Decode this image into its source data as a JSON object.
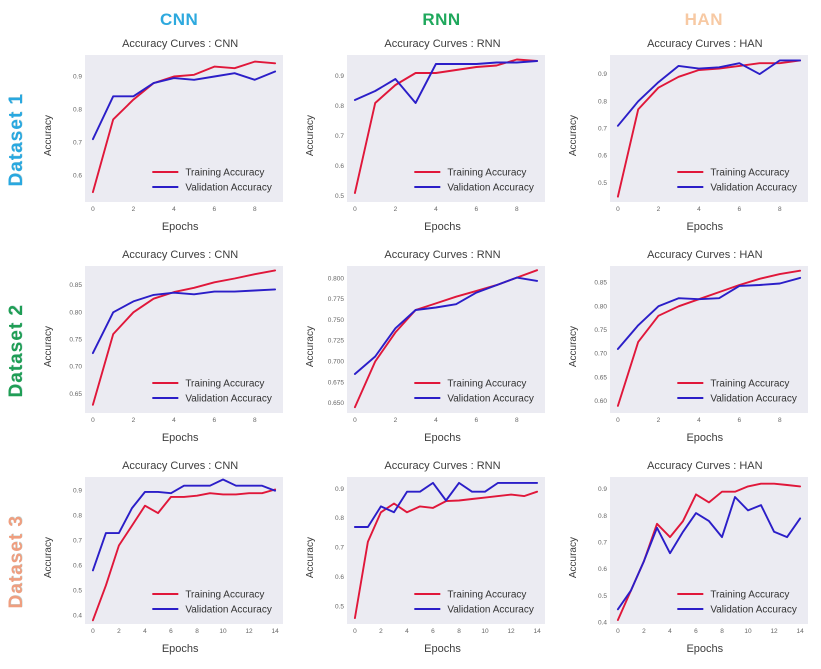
{
  "colors": {
    "train": "#e0173a",
    "val": "#2b1ec8",
    "plot_bg": "#ebebf2",
    "tick": "#666666",
    "legend_text": "#333333"
  },
  "columns": [
    {
      "label": "CNN",
      "color": "#2ea9de"
    },
    {
      "label": "RNN",
      "color": "#1fa85c"
    },
    {
      "label": "HAN",
      "color": "#f7c9a3"
    }
  ],
  "rows": [
    {
      "label": "Dataset 1",
      "color": "#29a8e0"
    },
    {
      "label": "Dataset 2",
      "color": "#1f9e55"
    },
    {
      "label": "Dataset 3",
      "color": "#ef9e7f"
    }
  ],
  "chart_data": [
    {
      "type": "line",
      "title": "Accuracy Curves : CNN",
      "xlabel": "Epochs",
      "ylabel": "Accuracy",
      "x": [
        0,
        1,
        2,
        3,
        4,
        5,
        6,
        7,
        8,
        9
      ],
      "xticks": [
        0,
        2,
        4,
        6,
        8
      ],
      "yticks": [
        0.6,
        0.7,
        0.8,
        0.9
      ],
      "ytick_labels": [
        "0.6",
        "0.7",
        "0.8",
        "0.9"
      ],
      "ylim": [
        0.52,
        0.965
      ],
      "legend_position": "lower right",
      "series": [
        {
          "name": "Training Accuracy",
          "color_key": "train",
          "values": [
            0.55,
            0.77,
            0.83,
            0.88,
            0.9,
            0.905,
            0.93,
            0.925,
            0.945,
            0.94
          ]
        },
        {
          "name": "Validation Accuracy",
          "color_key": "val",
          "values": [
            0.71,
            0.84,
            0.84,
            0.88,
            0.895,
            0.89,
            0.9,
            0.91,
            0.89,
            0.915
          ]
        }
      ]
    },
    {
      "type": "line",
      "title": "Accuracy Curves : RNN",
      "xlabel": "Epochs",
      "ylabel": "Accuracy",
      "x": [
        0,
        1,
        2,
        3,
        4,
        5,
        6,
        7,
        8,
        9
      ],
      "xticks": [
        0,
        2,
        4,
        6,
        8
      ],
      "yticks": [
        0.5,
        0.6,
        0.7,
        0.8,
        0.9
      ],
      "ytick_labels": [
        "0.5",
        "0.6",
        "0.7",
        "0.8",
        "0.9"
      ],
      "ylim": [
        0.48,
        0.97
      ],
      "legend_position": "lower right",
      "series": [
        {
          "name": "Training Accuracy",
          "color_key": "train",
          "values": [
            0.51,
            0.81,
            0.87,
            0.91,
            0.91,
            0.92,
            0.93,
            0.935,
            0.955,
            0.95
          ]
        },
        {
          "name": "Validation Accuracy",
          "color_key": "val",
          "values": [
            0.82,
            0.85,
            0.89,
            0.81,
            0.94,
            0.94,
            0.94,
            0.945,
            0.945,
            0.95
          ]
        }
      ]
    },
    {
      "type": "line",
      "title": "Accuracy Curves : HAN",
      "xlabel": "Epochs",
      "ylabel": "Accuracy",
      "x": [
        0,
        1,
        2,
        3,
        4,
        5,
        6,
        7,
        8,
        9
      ],
      "xticks": [
        0,
        2,
        4,
        6,
        8
      ],
      "yticks": [
        0.5,
        0.6,
        0.7,
        0.8,
        0.9
      ],
      "ytick_labels": [
        "0.5",
        "0.6",
        "0.7",
        "0.8",
        "0.9"
      ],
      "ylim": [
        0.43,
        0.97
      ],
      "legend_position": "lower right",
      "series": [
        {
          "name": "Training Accuracy",
          "color_key": "train",
          "values": [
            0.45,
            0.77,
            0.85,
            0.89,
            0.915,
            0.92,
            0.93,
            0.94,
            0.94,
            0.95
          ]
        },
        {
          "name": "Validation Accuracy",
          "color_key": "val",
          "values": [
            0.71,
            0.8,
            0.87,
            0.93,
            0.92,
            0.925,
            0.94,
            0.9,
            0.95,
            0.95
          ]
        }
      ]
    },
    {
      "type": "line",
      "title": "Accuracy Curves : CNN",
      "xlabel": "Epochs",
      "ylabel": "Accuracy",
      "x": [
        0,
        1,
        2,
        3,
        4,
        5,
        6,
        7,
        8,
        9
      ],
      "xticks": [
        0,
        2,
        4,
        6,
        8
      ],
      "yticks": [
        0.65,
        0.7,
        0.75,
        0.8,
        0.85
      ],
      "ytick_labels": [
        "0.65",
        "0.70",
        "0.75",
        "0.80",
        "0.85"
      ],
      "ylim": [
        0.615,
        0.885
      ],
      "legend_position": "lower right",
      "series": [
        {
          "name": "Training Accuracy",
          "color_key": "train",
          "values": [
            0.63,
            0.76,
            0.8,
            0.825,
            0.837,
            0.845,
            0.855,
            0.862,
            0.87,
            0.877
          ]
        },
        {
          "name": "Validation Accuracy",
          "color_key": "val",
          "values": [
            0.725,
            0.8,
            0.82,
            0.832,
            0.836,
            0.833,
            0.838,
            0.838,
            0.84,
            0.842
          ]
        }
      ]
    },
    {
      "type": "line",
      "title": "Accuracy Curves : RNN",
      "xlabel": "Epochs",
      "ylabel": "Accuracy",
      "x": [
        0,
        1,
        2,
        3,
        4,
        5,
        6,
        7,
        8,
        9
      ],
      "xticks": [
        0,
        2,
        4,
        6,
        8
      ],
      "yticks": [
        0.65,
        0.675,
        0.7,
        0.725,
        0.75,
        0.775,
        0.8
      ],
      "ytick_labels": [
        "0.650",
        "0.675",
        "0.700",
        "0.725",
        "0.750",
        "0.775",
        "0.800"
      ],
      "ylim": [
        0.638,
        0.815
      ],
      "legend_position": "lower right",
      "series": [
        {
          "name": "Training Accuracy",
          "color_key": "train",
          "values": [
            0.645,
            0.7,
            0.735,
            0.762,
            0.77,
            0.778,
            0.785,
            0.792,
            0.801,
            0.81
          ]
        },
        {
          "name": "Validation Accuracy",
          "color_key": "val",
          "values": [
            0.685,
            0.706,
            0.74,
            0.762,
            0.765,
            0.769,
            0.783,
            0.792,
            0.801,
            0.797
          ]
        }
      ]
    },
    {
      "type": "line",
      "title": "Accuracy Curves : HAN",
      "xlabel": "Epochs",
      "ylabel": "Accuracy",
      "x": [
        0,
        1,
        2,
        3,
        4,
        5,
        6,
        7,
        8,
        9
      ],
      "xticks": [
        0,
        2,
        4,
        6,
        8
      ],
      "yticks": [
        0.6,
        0.65,
        0.7,
        0.75,
        0.8,
        0.85
      ],
      "ytick_labels": [
        "0.60",
        "0.65",
        "0.70",
        "0.75",
        "0.80",
        "0.85"
      ],
      "ylim": [
        0.575,
        0.885
      ],
      "legend_position": "lower right",
      "series": [
        {
          "name": "Training Accuracy",
          "color_key": "train",
          "values": [
            0.59,
            0.725,
            0.78,
            0.8,
            0.815,
            0.83,
            0.845,
            0.858,
            0.868,
            0.875
          ]
        },
        {
          "name": "Validation Accuracy",
          "color_key": "val",
          "values": [
            0.71,
            0.76,
            0.8,
            0.817,
            0.815,
            0.817,
            0.843,
            0.845,
            0.848,
            0.86
          ]
        }
      ]
    },
    {
      "type": "line",
      "title": "Accuracy Curves : CNN",
      "xlabel": "Epochs",
      "ylabel": "Accuracy",
      "x": [
        0,
        1,
        2,
        3,
        4,
        5,
        6,
        7,
        8,
        9,
        10,
        11,
        12,
        13,
        14
      ],
      "xticks": [
        0,
        2,
        4,
        6,
        8,
        10,
        12,
        14
      ],
      "yticks": [
        0.4,
        0.5,
        0.6,
        0.7,
        0.8,
        0.9
      ],
      "ytick_labels": [
        "0.4",
        "0.5",
        "0.6",
        "0.7",
        "0.8",
        "0.9"
      ],
      "ylim": [
        0.365,
        0.955
      ],
      "legend_position": "lower right",
      "series": [
        {
          "name": "Training Accuracy",
          "color_key": "train",
          "values": [
            0.38,
            0.52,
            0.68,
            0.76,
            0.84,
            0.81,
            0.875,
            0.875,
            0.88,
            0.89,
            0.885,
            0.885,
            0.89,
            0.89,
            0.905
          ]
        },
        {
          "name": "Validation Accuracy",
          "color_key": "val",
          "values": [
            0.58,
            0.73,
            0.73,
            0.83,
            0.895,
            0.895,
            0.89,
            0.92,
            0.92,
            0.92,
            0.945,
            0.92,
            0.92,
            0.92,
            0.9
          ]
        }
      ]
    },
    {
      "type": "line",
      "title": "Accuracy Curves : RNN",
      "xlabel": "Epochs",
      "ylabel": "Accuracy",
      "x": [
        0,
        1,
        2,
        3,
        4,
        5,
        6,
        7,
        8,
        9,
        10,
        11,
        12,
        13,
        14
      ],
      "xticks": [
        0,
        2,
        4,
        6,
        8,
        10,
        12,
        14
      ],
      "yticks": [
        0.5,
        0.6,
        0.7,
        0.8,
        0.9
      ],
      "ytick_labels": [
        "0.5",
        "0.6",
        "0.7",
        "0.8",
        "0.9"
      ],
      "ylim": [
        0.44,
        0.94
      ],
      "legend_position": "lower right",
      "series": [
        {
          "name": "Training Accuracy",
          "color_key": "train",
          "values": [
            0.46,
            0.72,
            0.82,
            0.85,
            0.82,
            0.84,
            0.835,
            0.858,
            0.86,
            0.865,
            0.87,
            0.875,
            0.88,
            0.875,
            0.89
          ]
        },
        {
          "name": "Validation Accuracy",
          "color_key": "val",
          "values": [
            0.77,
            0.77,
            0.84,
            0.82,
            0.89,
            0.89,
            0.92,
            0.86,
            0.92,
            0.89,
            0.89,
            0.92,
            0.92,
            0.92,
            0.92
          ]
        }
      ]
    },
    {
      "type": "line",
      "title": "Accuracy Curves : HAN",
      "xlabel": "Epochs",
      "ylabel": "Accuracy",
      "x": [
        0,
        1,
        2,
        3,
        4,
        5,
        6,
        7,
        8,
        9,
        10,
        11,
        12,
        13,
        14
      ],
      "xticks": [
        0,
        2,
        4,
        6,
        8,
        10,
        12,
        14
      ],
      "yticks": [
        0.4,
        0.5,
        0.6,
        0.7,
        0.8,
        0.9
      ],
      "ytick_labels": [
        "0.4",
        "0.5",
        "0.6",
        "0.7",
        "0.8",
        "0.9"
      ],
      "ylim": [
        0.395,
        0.945
      ],
      "legend_position": "lower right",
      "series": [
        {
          "name": "Training Accuracy",
          "color_key": "train",
          "values": [
            0.41,
            0.52,
            0.63,
            0.77,
            0.72,
            0.78,
            0.88,
            0.85,
            0.89,
            0.89,
            0.91,
            0.92,
            0.92,
            0.915,
            0.91
          ]
        },
        {
          "name": "Validation Accuracy",
          "color_key": "val",
          "values": [
            0.45,
            0.52,
            0.63,
            0.755,
            0.66,
            0.74,
            0.81,
            0.78,
            0.72,
            0.87,
            0.82,
            0.84,
            0.74,
            0.72,
            0.79
          ]
        }
      ]
    }
  ]
}
